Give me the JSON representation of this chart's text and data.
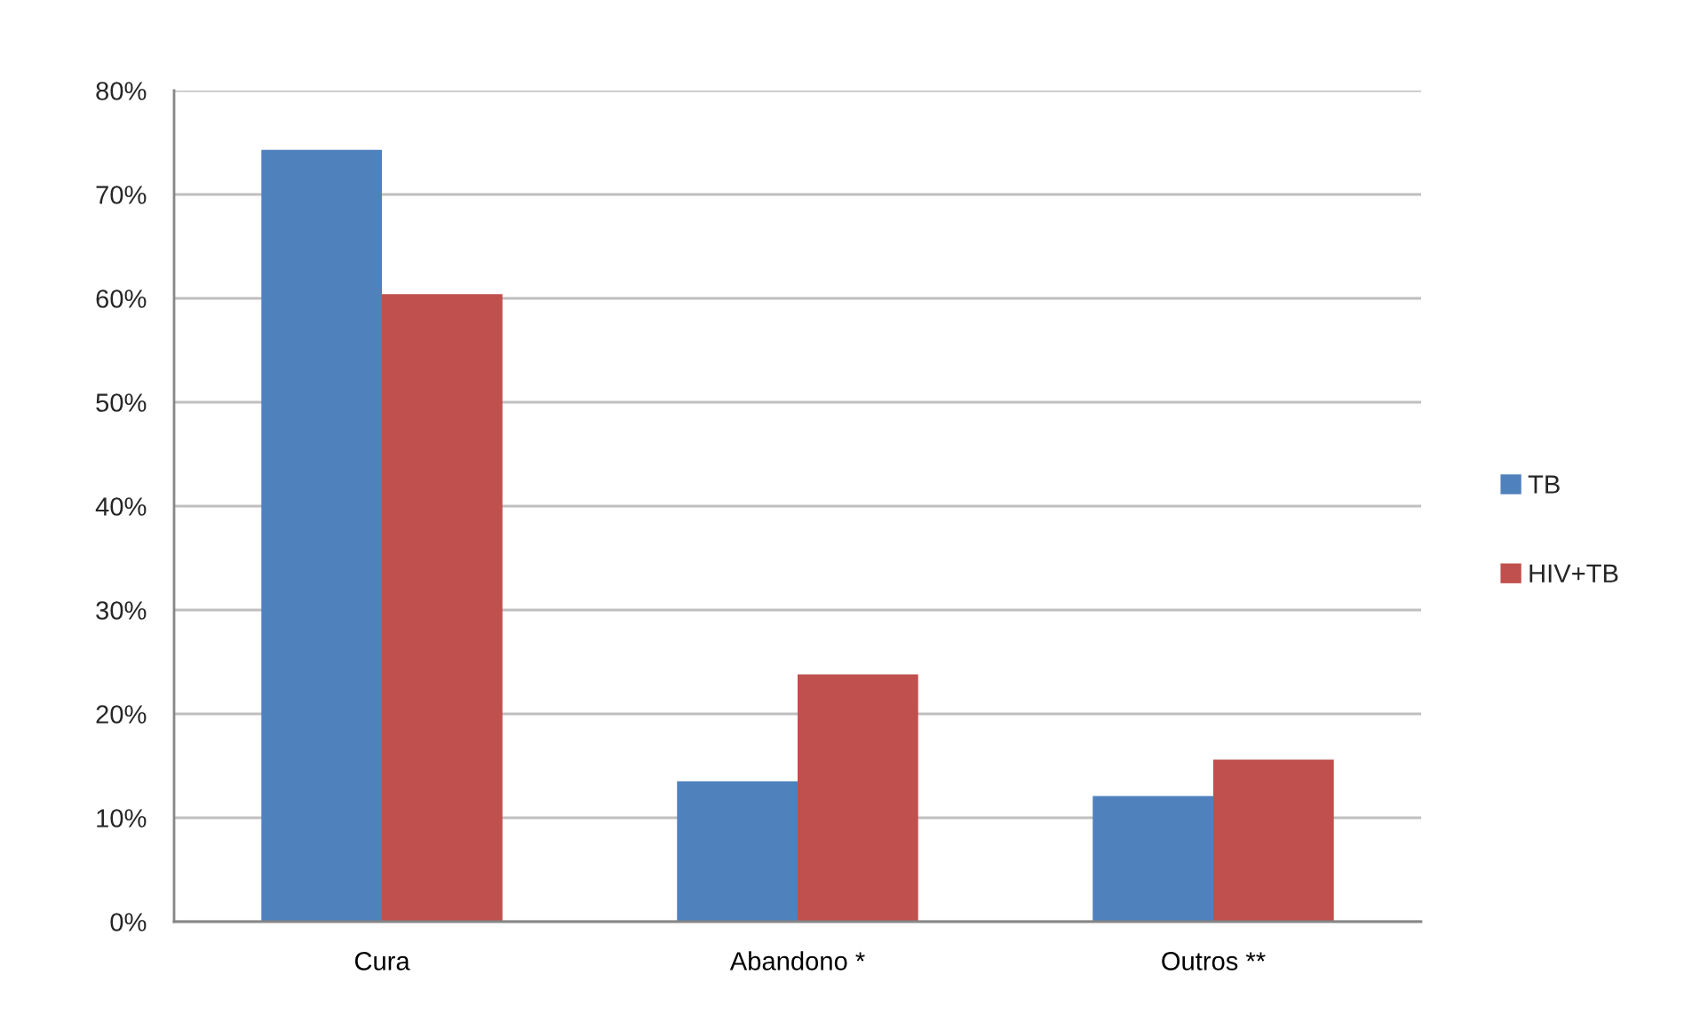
{
  "chart_data": {
    "type": "bar",
    "categories": [
      "Cura",
      "Abandono *",
      "Outros **"
    ],
    "series": [
      {
        "name": "TB",
        "color": "#4f81bd",
        "values": [
          74.3,
          13.5,
          12.1
        ]
      },
      {
        "name": "HIV+TB",
        "color": "#c0504d",
        "values": [
          60.4,
          23.8,
          15.6
        ]
      }
    ],
    "ylim": [
      0,
      80
    ],
    "yticks": [
      {
        "value": 0,
        "label": "0%"
      },
      {
        "value": 10,
        "label": "10%"
      },
      {
        "value": 20,
        "label": "20%"
      },
      {
        "value": 30,
        "label": "30%"
      },
      {
        "value": 40,
        "label": "40%"
      },
      {
        "value": 50,
        "label": "50%"
      },
      {
        "value": 60,
        "label": "60%"
      },
      {
        "value": 70,
        "label": "70%"
      },
      {
        "value": 80,
        "label": "80%"
      }
    ],
    "grid": "y",
    "legend": "right"
  }
}
